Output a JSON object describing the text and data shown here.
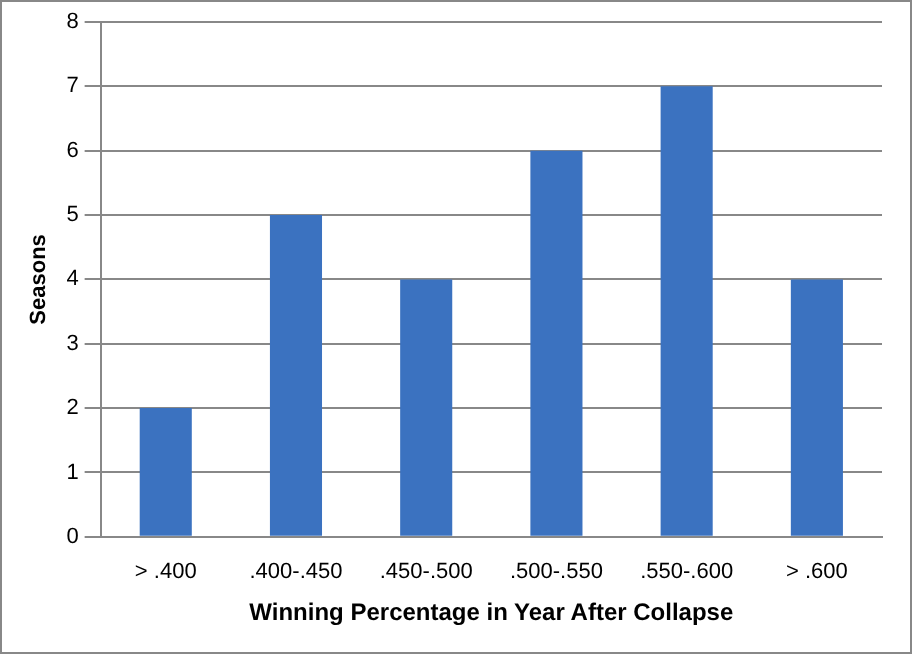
{
  "chart_data": {
    "type": "bar",
    "xlabel": "Winning Percentage in Year After Collapse",
    "ylabel": "Seasons",
    "categories": [
      "> .400",
      ".400-.450",
      ".450-.500",
      ".500-.550",
      ".550-.600",
      "> .600"
    ],
    "values": [
      2,
      5,
      4,
      6,
      7,
      4
    ],
    "color": "#3b72c0",
    "ylim": [
      0,
      8
    ],
    "yticks": [
      0,
      1,
      2,
      3,
      4,
      5,
      6,
      7,
      8
    ],
    "grid": "y"
  }
}
